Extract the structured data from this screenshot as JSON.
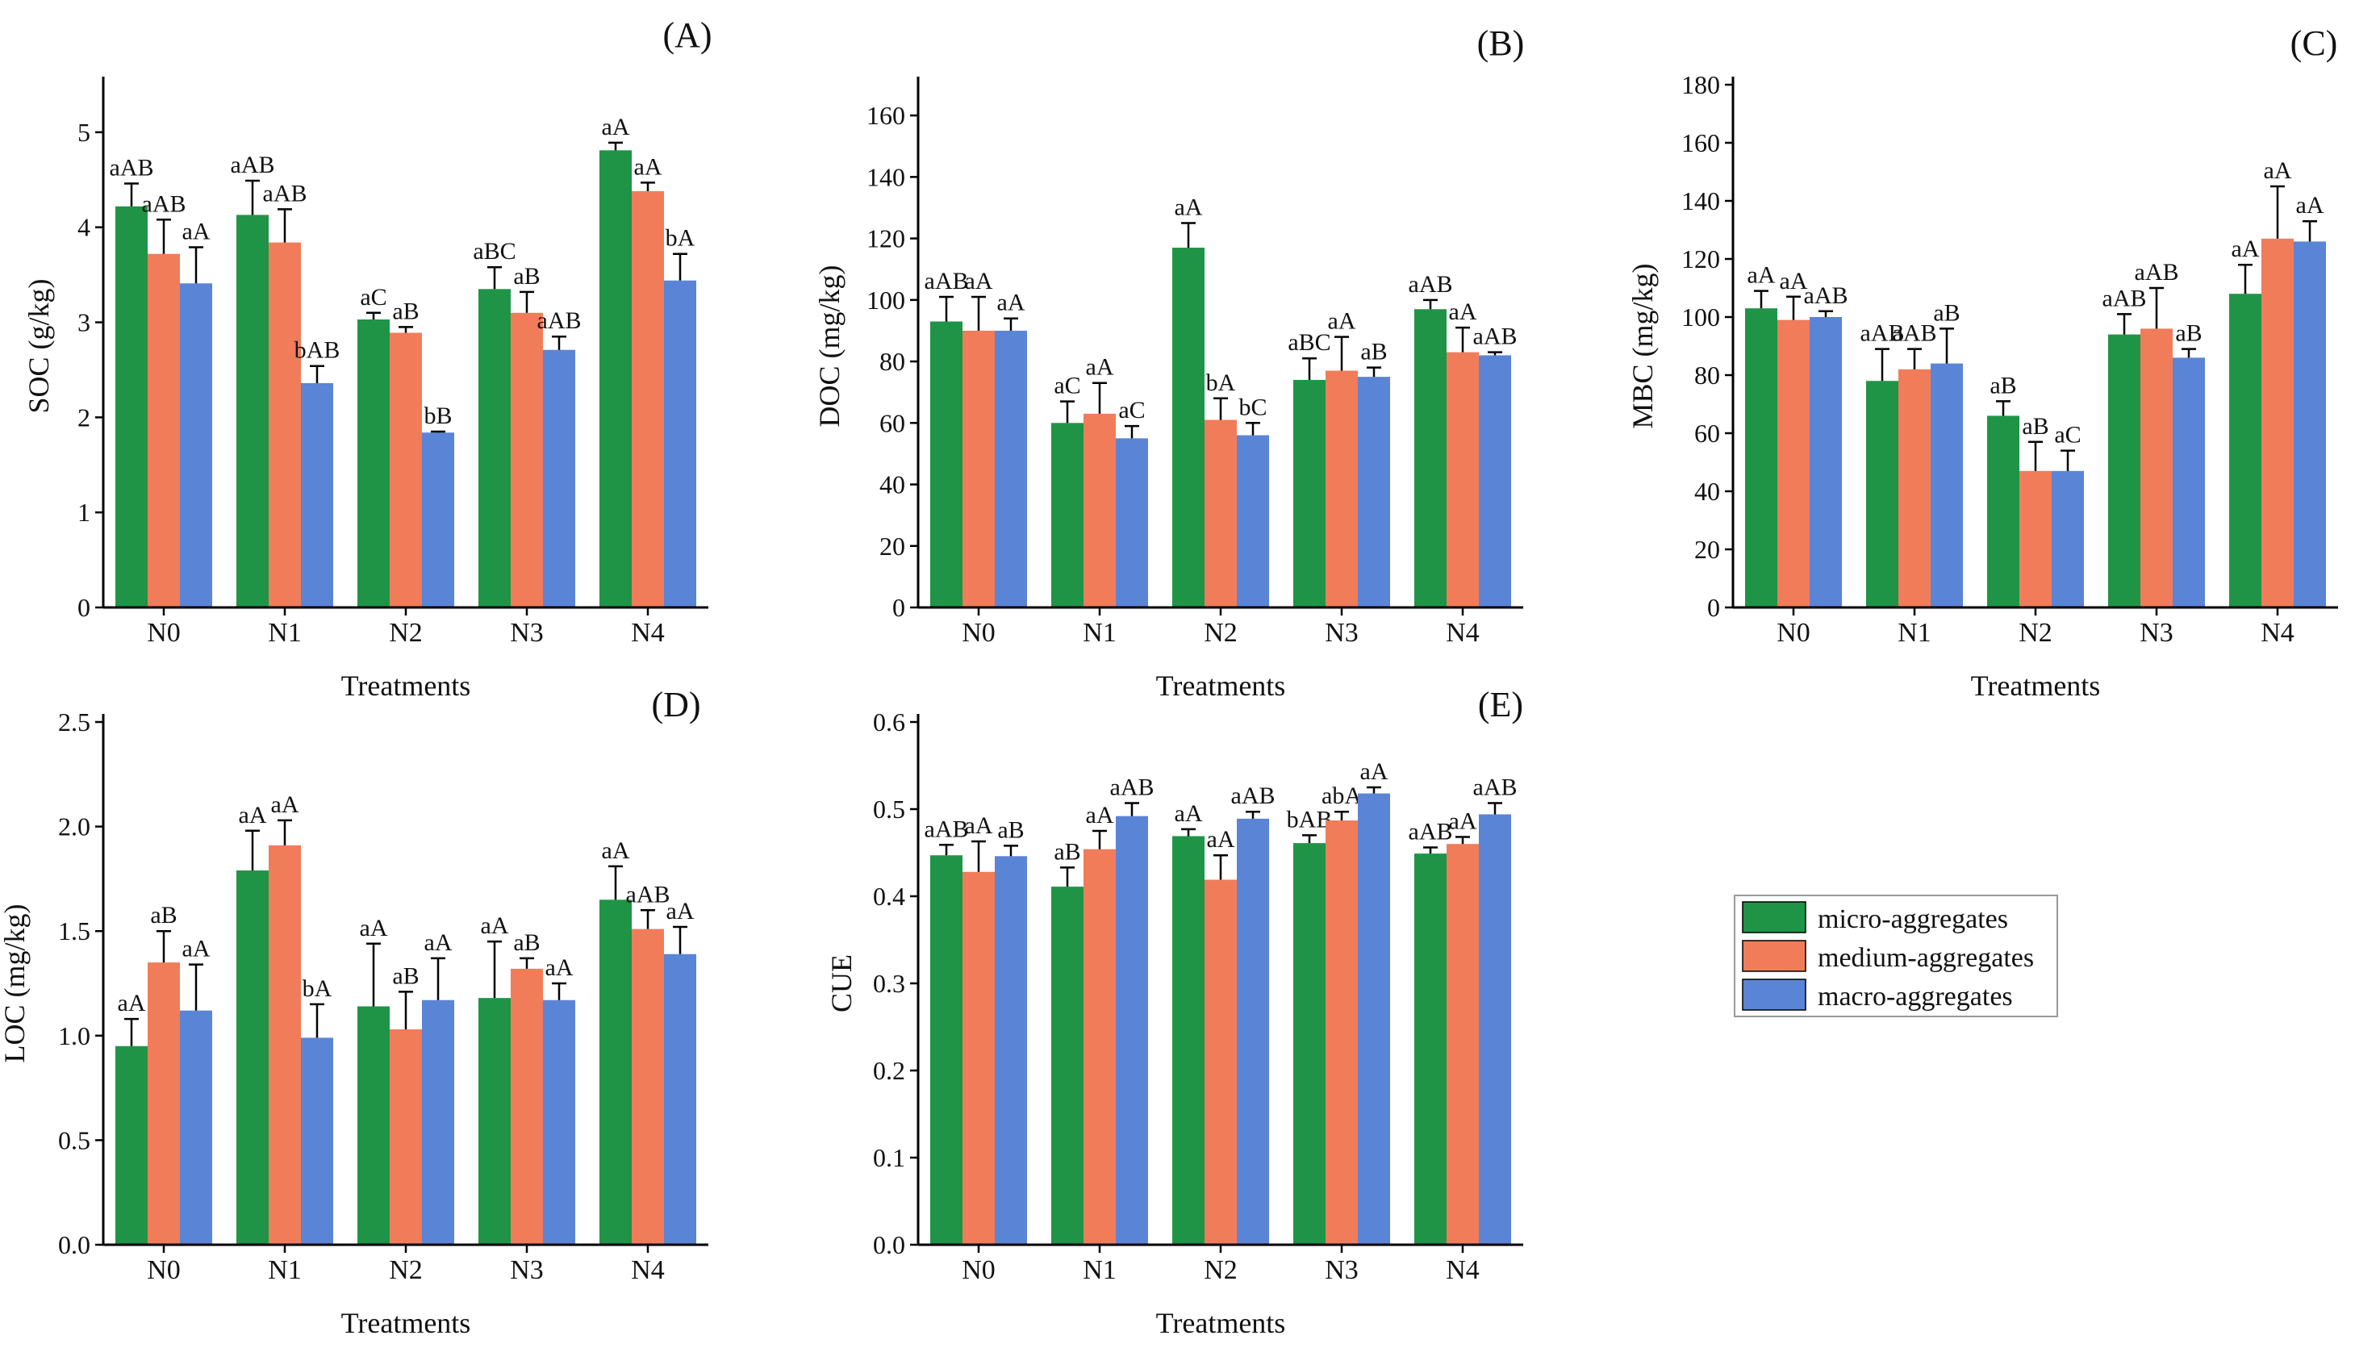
{
  "series_names": [
    "micro-aggregates",
    "medium-aggregates",
    "macro-aggregates"
  ],
  "colors": {
    "micro": "#1f9447",
    "medium": "#f07c5a",
    "macro": "#5a84d6"
  },
  "chart_data": [
    {
      "type": "bar",
      "panel_label": "(A)",
      "ylabel": "SOC (g/kg)",
      "xlabel": "Treatments",
      "categories": [
        "N0",
        "N1",
        "N2",
        "N3",
        "N4"
      ],
      "ylim": [
        0,
        5.5
      ],
      "yticks": [
        0,
        1,
        2,
        3,
        4,
        5
      ],
      "tick_labels": [
        "0",
        "1",
        "2",
        "3",
        "4",
        "5"
      ],
      "series": [
        {
          "name": "micro-aggregates",
          "values": [
            4.22,
            4.13,
            3.03,
            3.35,
            4.81
          ],
          "errors": [
            0.24,
            0.36,
            0.07,
            0.23,
            0.08
          ],
          "labels": [
            "aAB",
            "aAB",
            "aC",
            "aBC",
            "aA"
          ]
        },
        {
          "name": "medium-aggregates",
          "values": [
            3.72,
            3.84,
            2.89,
            3.1,
            4.38
          ],
          "errors": [
            0.36,
            0.35,
            0.06,
            0.22,
            0.09
          ],
          "labels": [
            "aAB",
            "aAB",
            "aB",
            "aB",
            "aA"
          ]
        },
        {
          "name": "macro-aggregates",
          "values": [
            3.41,
            2.36,
            1.84,
            2.71,
            3.44
          ],
          "errors": [
            0.38,
            0.18,
            0.01,
            0.14,
            0.28
          ],
          "labels": [
            "aA",
            "bAB",
            "bB",
            "aAB",
            "bA"
          ]
        }
      ]
    },
    {
      "type": "bar",
      "panel_label": "(B)",
      "ylabel": "DOC (mg/kg)",
      "xlabel": "Treatments",
      "categories": [
        "N0",
        "N1",
        "N2",
        "N3",
        "N4"
      ],
      "ylim": [
        0,
        170
      ],
      "yticks": [
        0,
        20,
        40,
        60,
        80,
        100,
        120,
        140,
        160
      ],
      "tick_labels": [
        "0",
        "20",
        "40",
        "60",
        "80",
        "100",
        "120",
        "140",
        "160"
      ],
      "series": [
        {
          "name": "micro-aggregates",
          "values": [
            93,
            60,
            117,
            74,
            97
          ],
          "errors": [
            8,
            7,
            8,
            7,
            3
          ],
          "labels": [
            "aAB",
            "aC",
            "aA",
            "aBC",
            "aAB"
          ]
        },
        {
          "name": "medium-aggregates",
          "values": [
            90,
            63,
            61,
            77,
            83
          ],
          "errors": [
            11,
            10,
            7,
            11,
            8
          ],
          "labels": [
            "aA",
            "aA",
            "bA",
            "aA",
            "aA"
          ]
        },
        {
          "name": "macro-aggregates",
          "values": [
            90,
            55,
            56,
            75,
            82
          ],
          "errors": [
            4,
            4,
            4,
            3,
            1
          ],
          "labels": [
            "aA",
            "aC",
            "bC",
            "aB",
            "aAB"
          ]
        }
      ]
    },
    {
      "type": "bar",
      "panel_label": "(C)",
      "ylabel": "MBC (mg/kg)",
      "xlabel": "Treatments",
      "categories": [
        "N0",
        "N1",
        "N2",
        "N3",
        "N4"
      ],
      "ylim": [
        0,
        180
      ],
      "yticks": [
        0,
        20,
        40,
        60,
        80,
        100,
        120,
        140,
        160,
        180
      ],
      "tick_labels": [
        "0",
        "20",
        "40",
        "60",
        "80",
        "100",
        "120",
        "140",
        "160",
        "180"
      ],
      "series": [
        {
          "name": "micro-aggregates",
          "values": [
            103,
            78,
            66,
            94,
            108
          ],
          "errors": [
            6,
            11,
            5,
            7,
            10
          ],
          "labels": [
            "aA",
            "aAB",
            "aB",
            "aAB",
            "aA"
          ]
        },
        {
          "name": "medium-aggregates",
          "values": [
            99,
            82,
            47,
            96,
            127
          ],
          "errors": [
            8,
            7,
            10,
            14,
            18
          ],
          "labels": [
            "aA",
            "aAB",
            "aB",
            "aAB",
            "aA"
          ]
        },
        {
          "name": "macro-aggregates",
          "values": [
            100,
            84,
            47,
            86,
            126
          ],
          "errors": [
            2,
            12,
            7,
            3,
            7
          ],
          "labels": [
            "aAB",
            "aB",
            "aC",
            "aB",
            "aA"
          ]
        }
      ]
    },
    {
      "type": "bar",
      "panel_label": "(D)",
      "ylabel": "LOC (mg/kg)",
      "xlabel": "Treatments",
      "categories": [
        "N0",
        "N1",
        "N2",
        "N3",
        "N4"
      ],
      "ylim": [
        0,
        2.5
      ],
      "yticks": [
        0,
        0.5,
        1.0,
        1.5,
        2.0,
        2.5
      ],
      "tick_labels": [
        "0.0",
        "0.5",
        "1.0",
        "1.5",
        "2.0",
        "2.5"
      ],
      "series": [
        {
          "name": "micro-aggregates",
          "values": [
            0.95,
            1.79,
            1.14,
            1.18,
            1.65
          ],
          "errors": [
            0.13,
            0.19,
            0.3,
            0.27,
            0.16
          ],
          "labels": [
            "aA",
            "aA",
            "aA",
            "aA",
            "aA"
          ]
        },
        {
          "name": "medium-aggregates",
          "values": [
            1.35,
            1.91,
            1.03,
            1.32,
            1.51
          ],
          "errors": [
            0.15,
            0.12,
            0.18,
            0.05,
            0.09
          ],
          "labels": [
            "aB",
            "aA",
            "aB",
            "aB",
            "aAB"
          ]
        },
        {
          "name": "macro-aggregates",
          "values": [
            1.12,
            0.99,
            1.17,
            1.17,
            1.39
          ],
          "errors": [
            0.22,
            0.16,
            0.2,
            0.08,
            0.13
          ],
          "labels": [
            "aA",
            "bA",
            "aA",
            "aA",
            "aA"
          ]
        }
      ]
    },
    {
      "type": "bar",
      "panel_label": "(E)",
      "ylabel": "CUE",
      "xlabel": "Treatments",
      "categories": [
        "N0",
        "N1",
        "N2",
        "N3",
        "N4"
      ],
      "ylim": [
        0,
        0.6
      ],
      "yticks": [
        0,
        0.1,
        0.2,
        0.3,
        0.4,
        0.5,
        0.6
      ],
      "tick_labels": [
        "0.0",
        "0.1",
        "0.2",
        "0.3",
        "0.4",
        "0.5",
        "0.6"
      ],
      "series": [
        {
          "name": "micro-aggregates",
          "values": [
            0.447,
            0.411,
            0.469,
            0.461,
            0.449
          ],
          "errors": [
            0.012,
            0.022,
            0.008,
            0.009,
            0.007
          ],
          "labels": [
            "aAB",
            "aB",
            "aA",
            "bAB",
            "aAB"
          ]
        },
        {
          "name": "medium-aggregates",
          "values": [
            0.428,
            0.454,
            0.419,
            0.487,
            0.46
          ],
          "errors": [
            0.035,
            0.021,
            0.028,
            0.01,
            0.008
          ],
          "labels": [
            "aA",
            "aA",
            "aA",
            "abA",
            "aA"
          ]
        },
        {
          "name": "macro-aggregates",
          "values": [
            0.446,
            0.492,
            0.489,
            0.518,
            0.494
          ],
          "errors": [
            0.012,
            0.015,
            0.008,
            0.007,
            0.013
          ],
          "labels": [
            "aB",
            "aAB",
            "aAB",
            "aA",
            "aAB"
          ]
        }
      ]
    }
  ]
}
